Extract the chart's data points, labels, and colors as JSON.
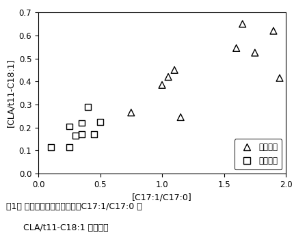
{
  "subcutaneous_x": [
    0.75,
    1.0,
    1.05,
    1.1,
    1.15,
    1.6,
    1.65,
    1.75,
    1.9,
    1.95
  ],
  "subcutaneous_y": [
    0.265,
    0.385,
    0.42,
    0.45,
    0.245,
    0.545,
    0.65,
    0.525,
    0.62,
    0.415
  ],
  "kidney_x": [
    0.1,
    0.25,
    0.25,
    0.3,
    0.35,
    0.35,
    0.4,
    0.45,
    0.5
  ],
  "kidney_y": [
    0.115,
    0.205,
    0.115,
    0.165,
    0.17,
    0.22,
    0.29,
    0.17,
    0.225
  ],
  "xlabel": "[C17:1/C17:0]",
  "ylabel": "[CLA/t11-C18:1]",
  "xlim": [
    0.0,
    2.0
  ],
  "ylim": [
    0.0,
    0.7
  ],
  "xticks": [
    0.0,
    0.5,
    1.0,
    1.5,
    2.0
  ],
  "yticks": [
    0.0,
    0.1,
    0.2,
    0.3,
    0.4,
    0.5,
    0.6,
    0.7
  ],
  "legend_triangle": "皮下脂肪",
  "legend_square": "腎臓脂肪",
  "caption_line1": "囱1． 山羊の脂肪組織におけるC17:1/C17:0 と",
  "caption_line2": "CLA/t11-C18:1 との関係",
  "marker_size_tri": 50,
  "marker_size_sq": 40
}
